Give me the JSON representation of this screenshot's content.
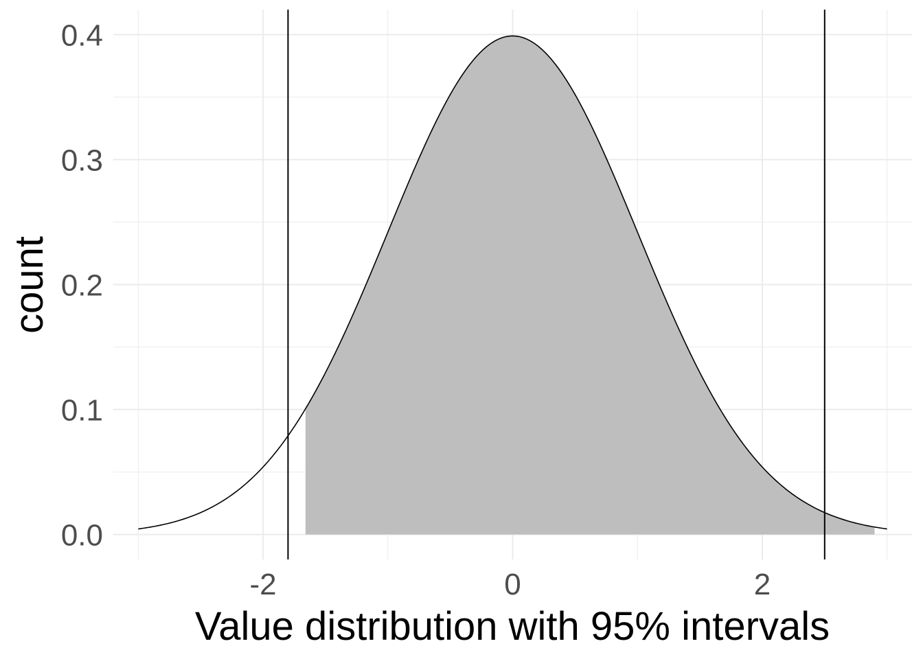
{
  "chart_data": {
    "type": "area",
    "title": "",
    "xlabel": "Value distribution with 95% intervals",
    "ylabel": "count",
    "xlim": [
      -3.2,
      3.2
    ],
    "ylim": [
      -0.02,
      0.42
    ],
    "x_ticks": [
      "-2",
      "0",
      "2"
    ],
    "x_tick_values": [
      -2,
      0,
      2
    ],
    "y_ticks": [
      "0.0",
      "0.1",
      "0.2",
      "0.3",
      "0.4"
    ],
    "y_tick_values": [
      0.0,
      0.1,
      0.2,
      0.3,
      0.4
    ],
    "grid": true,
    "curve": {
      "description_of_shape": "standard normal density",
      "mean": 0,
      "sd": 1,
      "x_range": [
        -3,
        3
      ]
    },
    "shaded_region": {
      "x_range": [
        -1.66,
        2.9
      ],
      "color": "#bebebe"
    },
    "vertical_lines": [
      -1.8,
      2.5
    ],
    "colors": {
      "fill": "#bebebe",
      "line": "#000000",
      "grid": "#ebebeb"
    }
  }
}
